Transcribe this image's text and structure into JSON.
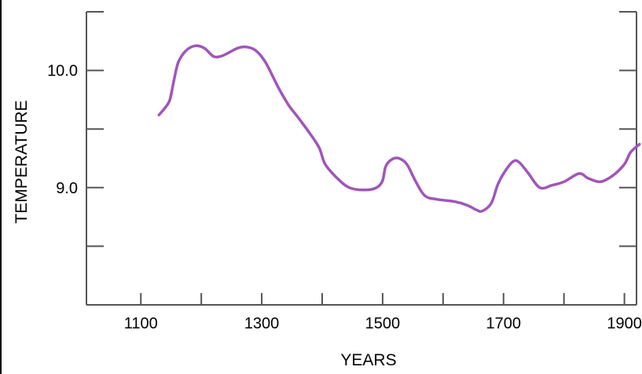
{
  "chart_data": {
    "type": "line",
    "title": "",
    "xlabel": "YEARS",
    "ylabel": "TEMPERATURE",
    "xlim": [
      1010,
      1920
    ],
    "ylim": [
      8.0,
      10.5
    ],
    "x_ticks": [
      1100,
      1200,
      1300,
      1400,
      1500,
      1600,
      1700,
      1800,
      1900
    ],
    "x_tick_labels": [
      "1100",
      "",
      "1300",
      "",
      "1500",
      "",
      "1700",
      "",
      "1900"
    ],
    "y_ticks": [
      8.5,
      9.0,
      9.5,
      10.0
    ],
    "y_tick_labels": [
      "",
      "9.0",
      "",
      "10.0"
    ],
    "grid": false,
    "line_color": "#a155b9",
    "axis_color": "#555555",
    "series": [
      {
        "x": [
          1130,
          1140,
          1148,
          1155,
          1162,
          1175,
          1190,
          1205,
          1220,
          1232,
          1245,
          1260,
          1275,
          1290,
          1305,
          1320,
          1330,
          1345,
          1360,
          1380,
          1395,
          1405,
          1425,
          1445,
          1470,
          1490,
          1500,
          1505,
          1515,
          1527,
          1540,
          1555,
          1570,
          1590,
          1620,
          1640,
          1655,
          1665,
          1680,
          1690,
          1700,
          1715,
          1725,
          1740,
          1760,
          1780,
          1800,
          1825,
          1840,
          1860,
          1880,
          1900,
          1910,
          1925
        ],
        "y": [
          9.62,
          9.68,
          9.75,
          9.92,
          10.07,
          10.17,
          10.21,
          10.19,
          10.12,
          10.12,
          10.15,
          10.19,
          10.2,
          10.17,
          10.08,
          9.93,
          9.83,
          9.7,
          9.6,
          9.46,
          9.34,
          9.2,
          9.08,
          9.0,
          8.98,
          9.0,
          9.06,
          9.18,
          9.24,
          9.25,
          9.2,
          9.05,
          8.93,
          8.9,
          8.88,
          8.85,
          8.81,
          8.8,
          8.87,
          9.02,
          9.12,
          9.22,
          9.22,
          9.13,
          9.0,
          9.02,
          9.05,
          9.12,
          9.08,
          9.05,
          9.1,
          9.2,
          9.3,
          9.37
        ]
      }
    ]
  }
}
